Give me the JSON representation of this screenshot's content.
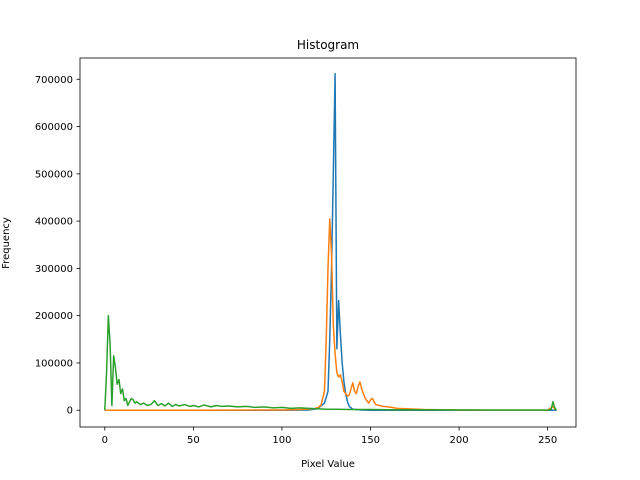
{
  "chart_data": {
    "type": "line",
    "title": "Histogram",
    "xlabel": "Pixel Value",
    "ylabel": "Frequency",
    "xlim": [
      -14,
      266
    ],
    "ylim": [
      -35500,
      745000
    ],
    "xticks": [
      0,
      50,
      100,
      150,
      200,
      250
    ],
    "yticks": [
      0,
      100000,
      200000,
      300000,
      400000,
      500000,
      600000,
      700000
    ],
    "grid": false,
    "series": [
      {
        "color": "#1f77b4",
        "points": [
          [
            0,
            0
          ],
          [
            100,
            0
          ],
          [
            115,
            500
          ],
          [
            120,
            3000
          ],
          [
            124,
            15000
          ],
          [
            126,
            40000
          ],
          [
            127,
            150000
          ],
          [
            128,
            300000
          ],
          [
            129,
            500000
          ],
          [
            130,
            712000
          ],
          [
            131,
            130000
          ],
          [
            132,
            232000
          ],
          [
            133,
            160000
          ],
          [
            134,
            100000
          ],
          [
            135,
            60000
          ],
          [
            136,
            35000
          ],
          [
            137,
            18000
          ],
          [
            138,
            8000
          ],
          [
            140,
            2000
          ],
          [
            145,
            500
          ],
          [
            150,
            0
          ],
          [
            255,
            0
          ]
        ]
      },
      {
        "color": "#ff7f0e",
        "points": [
          [
            0,
            0
          ],
          [
            50,
            0
          ],
          [
            100,
            500
          ],
          [
            110,
            1500
          ],
          [
            118,
            3000
          ],
          [
            120,
            5000
          ],
          [
            122,
            10000
          ],
          [
            124,
            40000
          ],
          [
            125,
            150000
          ],
          [
            126,
            300000
          ],
          [
            127,
            405000
          ],
          [
            128,
            330000
          ],
          [
            129,
            180000
          ],
          [
            130,
            120000
          ],
          [
            131,
            80000
          ],
          [
            132,
            70000
          ],
          [
            133,
            75000
          ],
          [
            134,
            60000
          ],
          [
            135,
            40000
          ],
          [
            136,
            35000
          ],
          [
            137,
            30000
          ],
          [
            138,
            32000
          ],
          [
            139,
            45000
          ],
          [
            140,
            58000
          ],
          [
            141,
            40000
          ],
          [
            142,
            35000
          ],
          [
            143,
            50000
          ],
          [
            144,
            60000
          ],
          [
            145,
            45000
          ],
          [
            146,
            35000
          ],
          [
            147,
            25000
          ],
          [
            148,
            20000
          ],
          [
            149,
            15000
          ],
          [
            150,
            22000
          ],
          [
            151,
            25000
          ],
          [
            152,
            18000
          ],
          [
            153,
            12000
          ],
          [
            155,
            10000
          ],
          [
            157,
            8000
          ],
          [
            160,
            7000
          ],
          [
            162,
            6000
          ],
          [
            165,
            4000
          ],
          [
            170,
            3000
          ],
          [
            180,
            1500
          ],
          [
            200,
            500
          ],
          [
            220,
            300
          ],
          [
            250,
            200
          ],
          [
            253,
            8000
          ],
          [
            254,
            3000
          ],
          [
            255,
            0
          ]
        ]
      },
      {
        "color": "#2ca02c",
        "points": [
          [
            0,
            0
          ],
          [
            1,
            80000
          ],
          [
            2,
            200000
          ],
          [
            3,
            140000
          ],
          [
            4,
            10000
          ],
          [
            5,
            115000
          ],
          [
            6,
            90000
          ],
          [
            7,
            55000
          ],
          [
            8,
            65000
          ],
          [
            9,
            35000
          ],
          [
            10,
            45000
          ],
          [
            11,
            20000
          ],
          [
            12,
            25000
          ],
          [
            13,
            10000
          ],
          [
            14,
            18000
          ],
          [
            15,
            25000
          ],
          [
            16,
            22000
          ],
          [
            17,
            15000
          ],
          [
            18,
            18000
          ],
          [
            20,
            12000
          ],
          [
            22,
            15000
          ],
          [
            24,
            10000
          ],
          [
            26,
            12000
          ],
          [
            28,
            20000
          ],
          [
            30,
            10000
          ],
          [
            32,
            14000
          ],
          [
            34,
            9000
          ],
          [
            36,
            15000
          ],
          [
            38,
            8000
          ],
          [
            40,
            12000
          ],
          [
            42,
            9000
          ],
          [
            45,
            12000
          ],
          [
            48,
            8000
          ],
          [
            50,
            10000
          ],
          [
            53,
            7000
          ],
          [
            56,
            11000
          ],
          [
            60,
            7000
          ],
          [
            63,
            10000
          ],
          [
            66,
            8000
          ],
          [
            70,
            9000
          ],
          [
            75,
            7000
          ],
          [
            80,
            8000
          ],
          [
            85,
            6000
          ],
          [
            90,
            7000
          ],
          [
            95,
            5000
          ],
          [
            100,
            6000
          ],
          [
            105,
            4000
          ],
          [
            110,
            5000
          ],
          [
            115,
            4000
          ],
          [
            120,
            3000
          ],
          [
            125,
            2000
          ],
          [
            130,
            2000
          ],
          [
            140,
            1500
          ],
          [
            150,
            1500
          ],
          [
            160,
            1000
          ],
          [
            170,
            1000
          ],
          [
            180,
            800
          ],
          [
            190,
            600
          ],
          [
            200,
            500
          ],
          [
            210,
            400
          ],
          [
            220,
            300
          ],
          [
            230,
            300
          ],
          [
            240,
            200
          ],
          [
            250,
            200
          ],
          [
            252,
            2000
          ],
          [
            253,
            18000
          ],
          [
            254,
            5000
          ],
          [
            255,
            0
          ]
        ]
      }
    ]
  }
}
